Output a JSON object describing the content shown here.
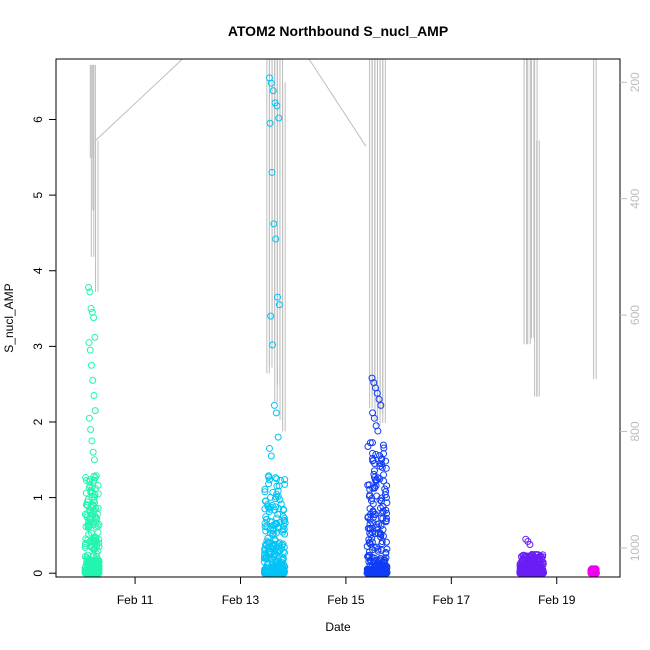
{
  "chart_data": {
    "type": "scatter",
    "title": "ATOM2 Northbound S_nucl_AMP",
    "xlabel": "Date",
    "ylabel": "S_nucl_AMP",
    "x_tick_labels": [
      "Feb 11",
      "Feb 13",
      "Feb 15",
      "Feb 17",
      "Feb 19"
    ],
    "x_tick_days": [
      11,
      13,
      15,
      17,
      19
    ],
    "xlim_days": [
      9.5,
      20.2
    ],
    "ylim": [
      -0.05,
      6.8
    ],
    "y_ticks": [
      0,
      1,
      2,
      3,
      4,
      5,
      6
    ],
    "y_tick_labels": [
      "0",
      "1",
      "2",
      "3",
      "4",
      "5",
      "6"
    ],
    "secondary_axis": {
      "label_color": "#bdbdbd",
      "reversed": true,
      "range": [
        160,
        1050
      ],
      "ticks": [
        200,
        400,
        600,
        800,
        1000
      ],
      "tick_labels": [
        "200",
        "400",
        "600",
        "800",
        "1000"
      ]
    },
    "depth_line_color": "#bdbdbd",
    "series": [
      {
        "color": "#22f5b0",
        "x_range_days": [
          10.05,
          10.32
        ],
        "dense_max": 1.3,
        "outliers": [
          3.78,
          3.72,
          3.5,
          3.45,
          3.38,
          3.12,
          3.05,
          2.95,
          2.75,
          2.55,
          2.35,
          2.15,
          2.05,
          1.9,
          1.75,
          1.6,
          1.5
        ],
        "depth_spikes": [
          [
            10.15,
            170,
            330
          ],
          [
            10.17,
            170,
            500
          ],
          [
            10.2,
            170,
            420
          ],
          [
            10.25,
            300,
            560
          ]
        ]
      },
      {
        "color": "#00c4f5",
        "x_range_days": [
          13.45,
          13.85
        ],
        "dense_max": 1.4,
        "outliers": [
          6.55,
          6.48,
          6.38,
          6.22,
          6.18,
          6.02,
          5.95,
          5.3,
          4.62,
          4.42,
          3.65,
          3.55,
          3.4,
          3.02,
          2.22,
          2.12,
          1.8,
          1.65,
          1.55
        ],
        "depth_spikes": [
          [
            13.5,
            160,
            700
          ],
          [
            13.55,
            160,
            690
          ],
          [
            13.6,
            160,
            650
          ],
          [
            13.65,
            160,
            750
          ],
          [
            13.7,
            160,
            720
          ],
          [
            13.75,
            160,
            780
          ],
          [
            13.8,
            200,
            800
          ]
        ]
      },
      {
        "color": "#0f3cf5",
        "x_range_days": [
          15.4,
          15.78
        ],
        "dense_max": 1.75,
        "outliers": [
          2.58,
          2.52,
          2.45,
          2.38,
          2.3,
          2.22,
          2.12,
          2.05,
          1.95,
          1.88,
          1.45
        ],
        "depth_spikes": [
          [
            15.45,
            160,
            760
          ],
          [
            15.5,
            160,
            740
          ],
          [
            15.55,
            160,
            780
          ],
          [
            15.6,
            160,
            790
          ],
          [
            15.65,
            160,
            770
          ],
          [
            15.7,
            160,
            785
          ]
        ]
      },
      {
        "color": "#6a1ef5",
        "x_range_days": [
          18.3,
          18.75
        ],
        "dense_max": 0.25,
        "outliers": [
          0.45,
          0.42,
          0.38
        ],
        "depth_spikes": [
          [
            18.38,
            160,
            650
          ],
          [
            18.45,
            160,
            650
          ],
          [
            18.52,
            160,
            640
          ],
          [
            18.58,
            160,
            740
          ],
          [
            18.62,
            300,
            740
          ]
        ]
      },
      {
        "color": "#f000f0",
        "x_range_days": [
          19.65,
          19.75
        ],
        "dense_max": 0.06,
        "outliers": [],
        "depth_spikes": [
          [
            19.7,
            160,
            710
          ]
        ]
      }
    ]
  }
}
